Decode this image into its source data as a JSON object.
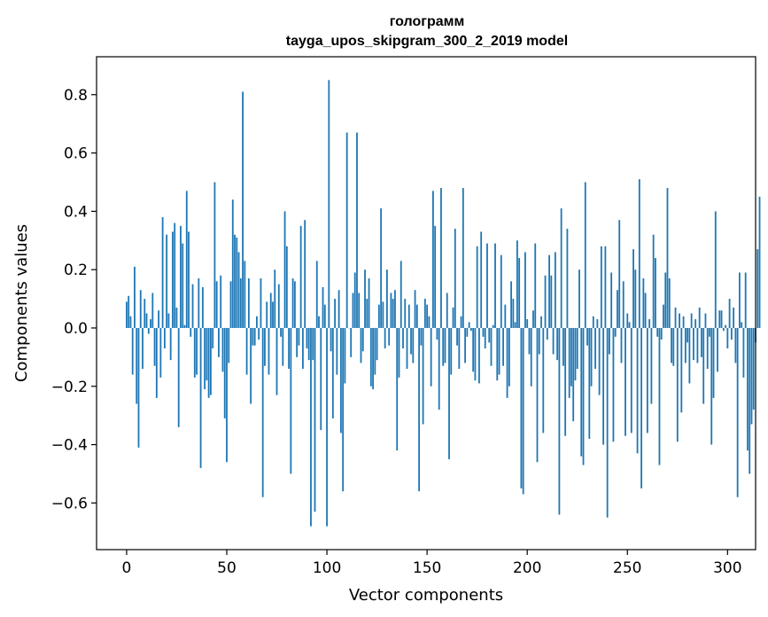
{
  "chart_data": {
    "type": "bar",
    "title": "голограмм",
    "subtitle": "tayga_upos_skipgram_300_2_2019 model",
    "xlabel": "Vector components",
    "ylabel": "Components values",
    "xlim": [
      -15,
      314
    ],
    "ylim": [
      -0.76,
      0.93
    ],
    "xticks": [
      0,
      50,
      100,
      150,
      200,
      250,
      300
    ],
    "xtick_labels": [
      "0",
      "50",
      "100",
      "150",
      "200",
      "250",
      "300"
    ],
    "yticks": [
      -0.6,
      -0.4,
      -0.2,
      0.0,
      0.2,
      0.4,
      0.6,
      0.8
    ],
    "ytick_labels": [
      "−0.6",
      "−0.4",
      "−0.2",
      "0.0",
      "0.2",
      "0.4",
      "0.6",
      "0.8"
    ],
    "grid": false,
    "color": "#1f77b4",
    "x_start": 0,
    "values": [
      0.09,
      0.11,
      0.04,
      -0.16,
      0.21,
      -0.26,
      -0.41,
      0.13,
      -0.14,
      0.1,
      0.05,
      -0.02,
      0.03,
      0.12,
      -0.13,
      -0.24,
      0.06,
      -0.17,
      0.38,
      -0.07,
      0.32,
      0.05,
      -0.11,
      0.33,
      0.36,
      0.07,
      -0.34,
      0.35,
      0.29,
      0.01,
      0.47,
      0.33,
      -0.03,
      0.15,
      -0.17,
      -0.16,
      0.17,
      -0.48,
      0.14,
      -0.21,
      -0.18,
      -0.24,
      -0.23,
      -0.07,
      0.5,
      0.16,
      -0.1,
      0.18,
      -0.15,
      -0.31,
      -0.46,
      -0.12,
      0.16,
      0.44,
      0.32,
      0.31,
      0.26,
      0.17,
      0.81,
      0.23,
      -0.16,
      0.17,
      -0.26,
      -0.06,
      -0.06,
      0.04,
      -0.04,
      0.17,
      -0.58,
      -0.13,
      0.09,
      -0.16,
      0.12,
      0.09,
      0.2,
      -0.23,
      0.15,
      -0.03,
      -0.13,
      0.4,
      0.28,
      -0.14,
      -0.5,
      0.17,
      0.16,
      -0.1,
      -0.06,
      0.35,
      -0.14,
      0.37,
      -0.07,
      -0.11,
      -0.68,
      -0.11,
      -0.63,
      0.23,
      0.04,
      -0.35,
      0.14,
      0.08,
      -0.68,
      0.85,
      -0.08,
      -0.31,
      0.1,
      -0.16,
      0.13,
      -0.36,
      -0.56,
      -0.19,
      0.67,
      0.0,
      -0.1,
      0.12,
      0.19,
      0.67,
      0.12,
      -0.12,
      -0.08,
      0.2,
      0.1,
      0.17,
      -0.2,
      -0.21,
      -0.16,
      -0.11,
      0.08,
      0.41,
      0.09,
      -0.07,
      0.2,
      -0.06,
      0.12,
      0.1,
      0.13,
      -0.42,
      -0.17,
      0.23,
      -0.07,
      0.1,
      -0.14,
      0.08,
      -0.09,
      -0.12,
      0.13,
      0.08,
      -0.56,
      -0.06,
      -0.33,
      0.1,
      0.08,
      0.04,
      -0.2,
      0.47,
      0.35,
      -0.04,
      -0.28,
      0.48,
      -0.13,
      -0.12,
      0.12,
      -0.45,
      -0.16,
      0.07,
      0.34,
      -0.06,
      -0.14,
      0.04,
      0.48,
      -0.12,
      -0.03,
      0.02,
      -0.01,
      -0.15,
      -0.18,
      0.28,
      -0.19,
      0.33,
      -0.03,
      -0.07,
      0.29,
      -0.05,
      -0.13,
      0.01,
      0.29,
      -0.18,
      -0.16,
      0.25,
      -0.13,
      0.08,
      -0.24,
      -0.2,
      0.16,
      0.1,
      0.02,
      0.3,
      0.24,
      -0.55,
      -0.57,
      0.26,
      0.03,
      -0.09,
      -0.2,
      0.06,
      0.29,
      -0.46,
      -0.09,
      0.04,
      -0.36,
      0.18,
      -0.04,
      0.25,
      0.18,
      -0.09,
      0.26,
      -0.11,
      -0.64,
      0.41,
      -0.13,
      -0.37,
      0.34,
      -0.24,
      -0.2,
      -0.32,
      -0.18,
      -0.14,
      0.2,
      -0.44,
      -0.47,
      0.5,
      -0.06,
      -0.38,
      -0.2,
      0.04,
      -0.14,
      0.03,
      -0.23,
      0.28,
      -0.4,
      0.28,
      -0.65,
      -0.09,
      0.19,
      -0.39,
      -0.03,
      0.13,
      0.37,
      -0.12,
      0.16,
      -0.37,
      0.05,
      0.02,
      -0.36,
      0.27,
      0.2,
      -0.43,
      0.51,
      -0.55,
      0.17,
      0.12,
      -0.36,
      0.03,
      -0.26,
      0.32,
      0.24,
      -0.03,
      -0.47,
      -0.04,
      0.08,
      0.19,
      0.48,
      0.17,
      -0.12,
      -0.13,
      0.07,
      -0.39,
      0.05,
      -0.29,
      0.04,
      -0.12,
      -0.05,
      -0.19,
      0.05,
      -0.11,
      0.03,
      -0.12,
      0.07,
      -0.1,
      -0.26,
      0.05,
      -0.14,
      -0.03,
      -0.4,
      -0.24,
      0.4,
      -0.15,
      0.06,
      0.06,
      -0.01,
      0.01,
      -0.07,
      0.1,
      -0.04,
      0.07,
      -0.12,
      -0.58,
      0.19,
      0.02,
      -0.17,
      0.19,
      -0.42,
      -0.5,
      -0.33,
      -0.28,
      -0.05,
      0.27,
      0.45
    ]
  }
}
